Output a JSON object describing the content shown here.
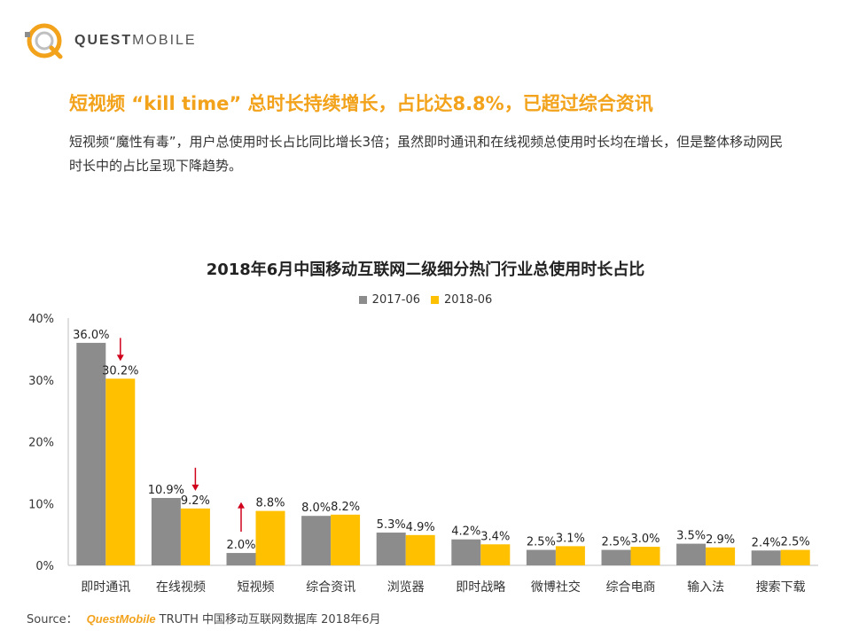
{
  "logo": {
    "text_bold": "QUEST",
    "text_light": "MOBILE"
  },
  "headline": "短视频 “kill time” 总时长持续增长，占比达8.8%，已超过综合资讯",
  "subtext": "短视频“魔性有毒”，用户总使用时长占比同比增长3倍；虽然即时通讯和在线视频总使用时长均在增长，但是整体移动网民时长中的占比呈现下降趋势。",
  "colors": {
    "accent": "#f2a21b",
    "series_2017": "#8c8c8c",
    "series_2018": "#ffc000",
    "arrow": "#d0021b"
  },
  "chart_data": {
    "type": "bar",
    "title": "2018年6月中国移动互联网二级细分热门行业总使用时长占比",
    "xlabel": "",
    "ylabel": "",
    "ylim": [
      0,
      40
    ],
    "yticks": [
      "0%",
      "10%",
      "20%",
      "30%",
      "40%"
    ],
    "legend_position": "top-center",
    "grid": false,
    "categories": [
      "即时通讯",
      "在线视频",
      "短视频",
      "综合资讯",
      "浏览器",
      "即时战略",
      "微博社交",
      "综合电商",
      "输入法",
      "搜索下载"
    ],
    "series": [
      {
        "name": "2017-06",
        "color": "#8c8c8c",
        "values": [
          36.0,
          10.9,
          2.0,
          8.0,
          5.3,
          4.2,
          2.5,
          2.5,
          3.5,
          2.4
        ],
        "labels": [
          "36.0%",
          "10.9%",
          "2.0%",
          "8.0%",
          "5.3%",
          "4.2%",
          "2.5%",
          "2.5%",
          "3.5%",
          "2.4%"
        ]
      },
      {
        "name": "2018-06",
        "color": "#ffc000",
        "values": [
          30.2,
          9.2,
          8.8,
          8.2,
          4.9,
          3.4,
          3.1,
          3.0,
          2.9,
          2.5
        ],
        "labels": [
          "30.2%",
          "9.2%",
          "8.8%",
          "8.2%",
          "4.9%",
          "3.4%",
          "3.1%",
          "3.0%",
          "2.9%",
          "2.5%"
        ]
      }
    ],
    "annotations": [
      {
        "category": "即时通讯",
        "direction": "down"
      },
      {
        "category": "在线视频",
        "direction": "down"
      },
      {
        "category": "短视频",
        "direction": "up"
      }
    ]
  },
  "source": {
    "label": "Source：",
    "brand": "QuestMobile",
    "text": "TRUTH 中国移动互联网数据库 2018年6月"
  }
}
